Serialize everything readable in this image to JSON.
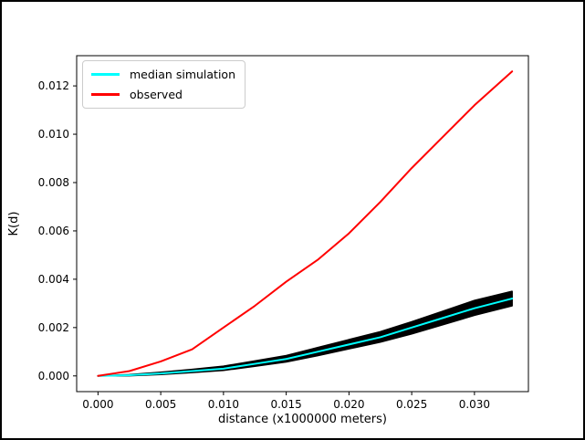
{
  "figure": {
    "background": "#ffffff",
    "border_color": "#000000"
  },
  "chart_data": {
    "type": "line",
    "title": "",
    "xlabel": "distance (x1000000 meters)",
    "ylabel": "K(d)",
    "xlim": [
      -0.0017,
      0.0343
    ],
    "ylim": [
      -0.00065,
      0.01325
    ],
    "xticks": [
      0.0,
      0.005,
      0.01,
      0.015,
      0.02,
      0.025,
      0.03
    ],
    "xtick_labels": [
      "0.000",
      "0.005",
      "0.010",
      "0.015",
      "0.020",
      "0.025",
      "0.030"
    ],
    "yticks": [
      0.0,
      0.002,
      0.004,
      0.006,
      0.008,
      0.01,
      0.012
    ],
    "ytick_labels": [
      "0.000",
      "0.002",
      "0.004",
      "0.006",
      "0.008",
      "0.010",
      "0.012"
    ],
    "grid": false,
    "background": "#ffffff",
    "spine_color": "#000000",
    "legend": {
      "position": "upper-left",
      "entries": [
        {
          "label": "median simulation",
          "color": "#00ffff"
        },
        {
          "label": "observed",
          "color": "#ff0000"
        }
      ]
    },
    "x": [
      0,
      0.0025,
      0.005,
      0.0075,
      0.01,
      0.0125,
      0.015,
      0.0175,
      0.02,
      0.0225,
      0.025,
      0.0275,
      0.03,
      0.033
    ],
    "series": [
      {
        "name": "simulation envelope",
        "type": "band",
        "color": "#000000",
        "low": [
          0,
          1e-05,
          6e-05,
          0.00014,
          0.00023,
          0.0004,
          0.00058,
          0.00084,
          0.00112,
          0.0014,
          0.00174,
          0.00212,
          0.00251,
          0.0029
        ],
        "high": [
          0,
          5e-05,
          0.00015,
          0.00027,
          0.0004,
          0.00062,
          0.00084,
          0.00117,
          0.0015,
          0.00183,
          0.00224,
          0.00268,
          0.00312,
          0.0035
        ]
      },
      {
        "name": "median simulation",
        "type": "line",
        "color": "#00ffff",
        "values": [
          0,
          3e-05,
          0.0001,
          0.0002,
          0.0003,
          0.0005,
          0.0007,
          0.001,
          0.0013,
          0.0016,
          0.002,
          0.0024,
          0.0028,
          0.0032
        ]
      },
      {
        "name": "observed",
        "type": "line",
        "color": "#ff0000",
        "values": [
          0,
          0.0002,
          0.0006,
          0.0011,
          0.002,
          0.0029,
          0.0039,
          0.0048,
          0.0059,
          0.0072,
          0.0086,
          0.0099,
          0.0112,
          0.0126
        ]
      }
    ]
  }
}
